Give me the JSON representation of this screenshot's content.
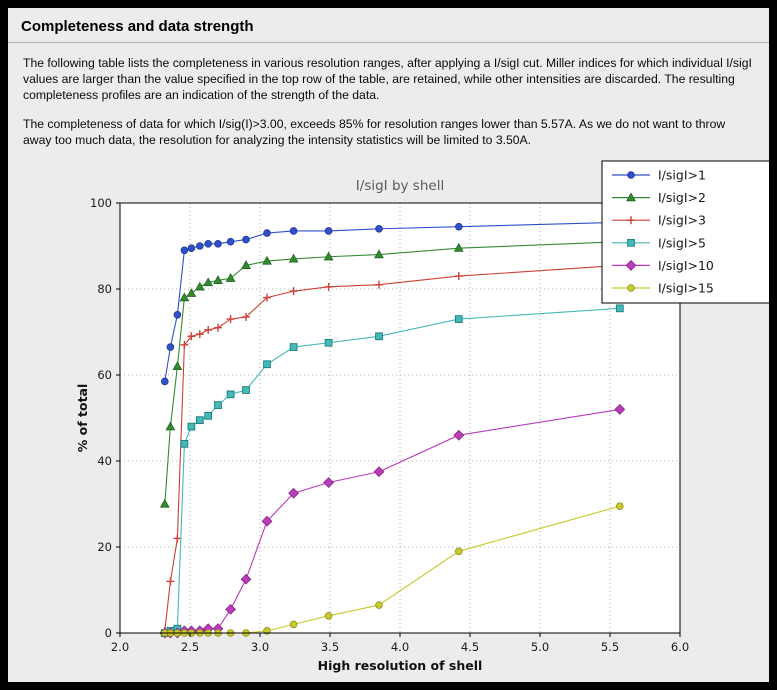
{
  "page": {
    "title": "Completeness and data strength",
    "paragraphs": [
      "The following table lists the completeness in various resolution ranges, after applying a I/sigI cut. Miller indices for which individual I/sigI values are larger than the value specified in the top row of the table, are retained, while other intensities are discarded. The resulting completeness profiles are an indication of the strength of the data.",
      "The completeness of data for which I/sig(I)>3.00, exceeds  85% for resolution ranges lower than 5.57A. As we do not want to throw away too much data, the resolution for analyzing the intensity statistics will be limited to 3.50A."
    ]
  },
  "chart_data": {
    "type": "line",
    "title": "I/sigI by shell",
    "xlabel": "High resolution of shell",
    "ylabel": "% of total",
    "xlim": [
      2.0,
      6.0
    ],
    "ylim": [
      0,
      100
    ],
    "xticks": [
      2.0,
      2.5,
      3.0,
      3.5,
      4.0,
      4.5,
      5.0,
      5.5,
      6.0
    ],
    "xtick_labels": [
      "2.0",
      "2.5",
      "3.0",
      "3.5",
      "4.0",
      "4.5",
      "5.0",
      "5.5",
      "6.0"
    ],
    "yticks": [
      0,
      20,
      40,
      60,
      80,
      100
    ],
    "ytick_labels": [
      "0",
      "20",
      "40",
      "60",
      "80",
      "100"
    ],
    "grid": true,
    "legend_position": "upper-right-outside",
    "x": [
      2.32,
      2.36,
      2.41,
      2.46,
      2.51,
      2.57,
      2.63,
      2.7,
      2.79,
      2.9,
      3.05,
      3.24,
      3.49,
      3.85,
      4.42,
      5.57
    ],
    "series": [
      {
        "name": "I/sigI>1",
        "marker": "circle",
        "color": "#3050c8",
        "edge": "#20389a",
        "values": [
          58.5,
          66.5,
          74,
          89,
          89.5,
          90,
          90.5,
          90.5,
          91,
          91.5,
          93,
          93.5,
          93.5,
          94,
          94.5,
          95.5
        ]
      },
      {
        "name": "I/sigI>2",
        "marker": "triangle",
        "color": "#338a33",
        "edge": "#1f661f",
        "values": [
          30,
          48,
          62,
          78,
          79,
          80.5,
          81.5,
          82,
          82.5,
          85.5,
          86.5,
          87,
          87.5,
          88,
          89.5,
          91
        ]
      },
      {
        "name": "I/sigI>3",
        "marker": "plus",
        "color": "#cc4036",
        "edge": "#cc4036",
        "values": [
          0.5,
          12,
          22,
          67,
          69,
          69.5,
          70.5,
          71,
          73,
          73.5,
          78,
          79.5,
          80.5,
          81,
          83,
          85.5
        ]
      },
      {
        "name": "I/sigI>5",
        "marker": "square",
        "color": "#46b8b8",
        "edge": "#157d7d",
        "values": [
          0,
          0.5,
          1,
          44,
          48,
          49.5,
          50.5,
          53,
          55.5,
          56.5,
          62.5,
          66.5,
          67.5,
          69,
          73,
          75.5
        ]
      },
      {
        "name": "I/sigI>10",
        "marker": "diamond",
        "color": "#bb3cbb",
        "edge": "#8a2a8a",
        "values": [
          0,
          0,
          0,
          0.5,
          0.5,
          0.5,
          1,
          1,
          5.5,
          12.5,
          26,
          32.5,
          35,
          37.5,
          46,
          52
        ]
      },
      {
        "name": "I/sigI>15",
        "marker": "circle",
        "color": "#c9c92f",
        "edge": "#8f8f1d",
        "values": [
          0,
          0,
          0,
          0,
          0,
          0,
          0,
          0,
          0,
          0,
          0.5,
          2,
          4,
          6.5,
          19,
          29.5
        ]
      }
    ]
  }
}
